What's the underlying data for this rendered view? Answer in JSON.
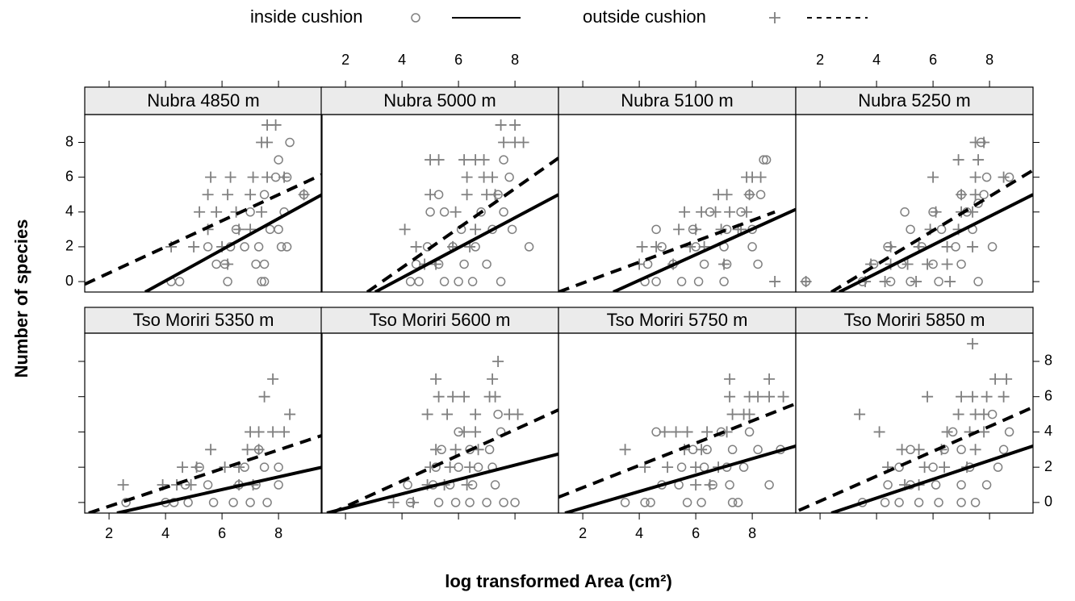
{
  "chart_data": {
    "type": "scatter",
    "xlabel": "log transformed Area (cm²)",
    "ylabel": "Number of species",
    "xlim": [
      1.14,
      9.54
    ],
    "ylim": [
      -0.6,
      9.6
    ],
    "xticks": [
      2,
      4,
      6,
      8
    ],
    "yticks": [
      0,
      2,
      4,
      6,
      8
    ],
    "point_color": "#808080",
    "line_color": "#000000",
    "series": [
      {
        "name": "inside cushion",
        "marker": "circle",
        "line": "solid"
      },
      {
        "name": "outside cushion",
        "marker": "plus",
        "line": "dashed"
      }
    ],
    "panels": [
      {
        "title": "Nubra 4850 m",
        "points": [
          {
            "x": [
              6.2,
              7.4,
              7.5,
              4.2,
              4.5,
              5.8,
              6.1,
              7.2,
              7.5,
              5.5,
              6.3,
              6.8,
              7.3,
              8.1,
              8.3,
              6.5,
              7.7,
              8.0,
              7.0,
              8.2,
              7.5,
              8.9,
              7.9,
              8.3,
              8.0,
              8.4
            ],
            "y": [
              0,
              0,
              0,
              0,
              0,
              1,
              1,
              1,
              1,
              2,
              2,
              2,
              2,
              2,
              2,
              3,
              3,
              3,
              4,
              4,
              5,
              5,
              6,
              6,
              7,
              8
            ]
          },
          {
            "x": [
              4.2,
              5.0,
              5.5,
              5.2,
              5.8,
              6.5,
              5.5,
              6.2,
              7.0,
              5.6,
              6.3,
              7.1,
              7.6,
              8.2,
              6.6,
              7.4,
              7.4,
              7.6,
              7.6,
              7.9,
              8.9,
              6.0,
              7.0,
              6.2
            ],
            "y": [
              2,
              2,
              3,
              4,
              4,
              4,
              5,
              5,
              5,
              6,
              6,
              6,
              6,
              6,
              3,
              4,
              8,
              8,
              9,
              9,
              5,
              2,
              3,
              1
            ]
          }
        ],
        "fits": [
          {
            "x": [
              3.28,
              9.54
            ],
            "y": [
              -0.6,
              5.0
            ]
          },
          {
            "x": [
              1.14,
              9.54
            ],
            "y": [
              -0.15,
              6.15
            ]
          }
        ]
      },
      {
        "title": "Nubra 5000 m",
        "points": [
          {
            "x": [
              4.3,
              4.6,
              5.5,
              6.0,
              6.5,
              7.5,
              4.5,
              5.3,
              6.2,
              7.0,
              4.9,
              5.8,
              6.6,
              8.5,
              6.1,
              7.2,
              7.9,
              5.0,
              6.8,
              7.6,
              5.3,
              7.4,
              7.8,
              7.6,
              5.5
            ],
            "y": [
              0,
              0,
              0,
              0,
              0,
              0,
              1,
              1,
              1,
              1,
              2,
              2,
              2,
              2,
              3,
              3,
              3,
              4,
              4,
              4,
              5,
              5,
              6,
              7,
              4
            ]
          },
          {
            "x": [
              4.1,
              4.5,
              4.8,
              5.2,
              5.8,
              6.4,
              6.6,
              5.0,
              5.9,
              6.3,
              7.0,
              7.3,
              5.0,
              5.3,
              6.2,
              6.6,
              6.9,
              6.3,
              6.9,
              7.2,
              7.6,
              8.0,
              8.3,
              7.5,
              8.0
            ],
            "y": [
              3,
              2,
              1,
              1,
              2,
              2,
              3,
              5,
              4,
              5,
              5,
              5,
              7,
              7,
              7,
              7,
              7,
              6,
              6,
              6,
              8,
              8,
              8,
              9,
              9
            ]
          }
        ],
        "fits": [
          {
            "x": [
              3.05,
              9.54
            ],
            "y": [
              -0.6,
              5.0
            ]
          },
          {
            "x": [
              2.77,
              9.54
            ],
            "y": [
              -0.6,
              7.1
            ]
          }
        ]
      },
      {
        "title": "Nubra 5100 m",
        "points": [
          {
            "x": [
              4.2,
              4.6,
              5.5,
              6.1,
              7.0,
              4.3,
              5.2,
              6.3,
              7.1,
              8.2,
              4.8,
              6.0,
              7.0,
              8.0,
              4.6,
              5.9,
              7.1,
              8.0,
              6.5,
              7.6,
              7.9,
              8.3,
              8.4,
              8.5
            ],
            "y": [
              0,
              0,
              0,
              0,
              0,
              1,
              1,
              1,
              1,
              1,
              2,
              2,
              2,
              2,
              3,
              3,
              3,
              3,
              4,
              4,
              5,
              5,
              7,
              7
            ]
          },
          {
            "x": [
              4.0,
              4.1,
              4.6,
              5.2,
              5.8,
              6.3,
              7.0,
              5.4,
              6.0,
              6.9,
              7.5,
              5.6,
              6.2,
              6.7,
              7.2,
              7.8,
              6.8,
              7.1,
              7.9,
              7.8,
              8.0,
              8.3,
              7.6,
              8.8
            ],
            "y": [
              1,
              2,
              2,
              1,
              2,
              2,
              1,
              3,
              3,
              3,
              3,
              4,
              4,
              4,
              4,
              4,
              5,
              5,
              5,
              6,
              6,
              6,
              3,
              0
            ]
          }
        ],
        "fits": [
          {
            "x": [
              3.08,
              9.54
            ],
            "y": [
              -0.6,
              4.15
            ]
          },
          {
            "x": [
              1.14,
              8.8
            ],
            "y": [
              -0.6,
              4.0
            ]
          }
        ]
      },
      {
        "title": "Nubra 5250 m",
        "points": [
          {
            "x": [
              1.5,
              3.5,
              4.5,
              5.2,
              6.2,
              7.6,
              3.9,
              4.9,
              6.0,
              7.0,
              4.4,
              5.6,
              6.8,
              8.1,
              5.2,
              6.3,
              7.4,
              5.0,
              6.0,
              7.2,
              7.6,
              7.0,
              7.8,
              7.9,
              8.7,
              7.7
            ],
            "y": [
              0,
              0,
              0,
              0,
              0,
              0,
              1,
              1,
              1,
              1,
              2,
              2,
              2,
              2,
              3,
              3,
              3,
              4,
              4,
              4,
              4.5,
              5,
              5,
              6,
              6,
              8
            ]
          },
          {
            "x": [
              1.5,
              3.6,
              4.3,
              5.4,
              6.6,
              3.8,
              4.5,
              5.1,
              5.8,
              6.5,
              4.5,
              5.5,
              6.5,
              7.4,
              5.9,
              6.9,
              6.1,
              7.0,
              7.4,
              7.0,
              7.5,
              6.0,
              7.5,
              6.9,
              7.6,
              7.5,
              7.8,
              8.5
            ],
            "y": [
              0,
              0,
              0,
              0,
              0,
              1,
              1,
              1,
              1,
              1,
              2,
              2,
              2,
              2,
              3,
              3,
              4,
              4,
              4,
              5,
              5,
              6,
              6,
              7,
              7,
              8,
              8,
              6
            ]
          }
        ],
        "fits": [
          {
            "x": [
              2.68,
              9.54
            ],
            "y": [
              -0.6,
              5.0
            ]
          },
          {
            "x": [
              2.4,
              9.54
            ],
            "y": [
              -0.6,
              6.4
            ]
          }
        ]
      },
      {
        "title": "Tso Moriri 5350 m",
        "points": [
          {
            "x": [
              2.6,
              4.0,
              4.8,
              5.7,
              6.4,
              7.0,
              7.6,
              4.7,
              5.5,
              6.6,
              7.2,
              8.0,
              5.2,
              6.8,
              7.5,
              8.0,
              7.3,
              4.3
            ],
            "y": [
              0,
              0,
              0,
              0,
              0,
              0,
              0,
              1,
              1,
              1,
              1,
              1,
              2,
              2,
              2,
              2,
              3,
              0
            ]
          },
          {
            "x": [
              2.5,
              3.9,
              4.4,
              4.9,
              4.6,
              5.1,
              5.6,
              6.1,
              6.6,
              6.9,
              7.3,
              7.0,
              7.3,
              7.8,
              7.5,
              7.8,
              8.2,
              8.4,
              6.6,
              7.1
            ],
            "y": [
              1,
              1,
              1,
              1,
              2,
              2,
              3,
              2,
              2,
              3,
              3,
              4,
              4,
              4,
              6,
              7,
              4,
              5,
              1,
              1
            ]
          }
        ],
        "fits": [
          {
            "x": [
              2.28,
              9.54
            ],
            "y": [
              -0.6,
              2.0
            ]
          },
          {
            "x": [
              1.28,
              9.54
            ],
            "y": [
              -0.6,
              3.8
            ]
          }
        ]
      },
      {
        "title": "Tso Moriri 5600 m",
        "points": [
          {
            "x": [
              4.3,
              5.3,
              5.9,
              6.4,
              7.0,
              7.6,
              8.0,
              4.2,
              5.1,
              5.7,
              6.5,
              7.3,
              5.2,
              6.0,
              6.7,
              7.2,
              5.4,
              6.4,
              7.1,
              6.0,
              7.4,
              7.5
            ],
            "y": [
              0,
              0,
              0,
              0,
              0,
              0,
              0,
              1,
              1,
              1,
              1,
              1,
              2,
              2,
              2,
              2,
              3,
              3,
              3,
              4,
              5,
              4
            ]
          },
          {
            "x": [
              3.7,
              4.4,
              4.9,
              5.5,
              6.3,
              5.0,
              5.7,
              6.4,
              5.2,
              5.9,
              6.7,
              6.2,
              6.6,
              4.9,
              5.6,
              6.6,
              7.8,
              8.1,
              5.3,
              5.8,
              6.2,
              7.1,
              7.3,
              5.2,
              7.2,
              7.4
            ],
            "y": [
              0,
              0,
              1,
              1,
              1,
              2,
              2,
              2,
              3,
              3,
              3,
              4,
              4,
              5,
              5,
              5,
              5,
              5,
              6,
              6,
              6,
              6,
              6,
              7,
              7,
              8
            ]
          }
        ],
        "fits": [
          {
            "x": [
              1.34,
              9.54
            ],
            "y": [
              -0.6,
              2.75
            ]
          },
          {
            "x": [
              1.5,
              9.54
            ],
            "y": [
              -0.6,
              5.25
            ]
          }
        ]
      },
      {
        "title": "Tso Moriri 5750 m",
        "points": [
          {
            "x": [
              3.5,
              4.2,
              4.4,
              5.7,
              6.2,
              7.3,
              7.5,
              4.8,
              5.4,
              6.6,
              7.2,
              8.6,
              5.5,
              6.3,
              7.1,
              7.7,
              6.4,
              7.3,
              8.2,
              9.0,
              4.6,
              6.9,
              7.9,
              5.9
            ],
            "y": [
              0,
              0,
              0,
              0,
              0,
              0,
              0,
              1,
              1,
              1,
              1,
              1,
              2,
              2,
              2,
              2,
              3,
              3,
              3,
              3,
              4,
              4,
              4,
              3
            ]
          },
          {
            "x": [
              3.5,
              4.2,
              4.9,
              5.3,
              5.0,
              5.6,
              6.0,
              6.2,
              6.8,
              5.7,
              6.4,
              7.1,
              7.3,
              7.7,
              7.9,
              7.2,
              7.9,
              8.2,
              8.6,
              9.1,
              7.2,
              8.6,
              6.0,
              6.5
            ],
            "y": [
              3,
              2,
              4,
              4,
              2,
              3,
              2,
              3,
              2,
              4,
              4,
              4,
              5,
              5,
              5,
              6,
              6,
              6,
              6,
              6,
              7,
              7,
              1,
              1
            ]
          }
        ],
        "fits": [
          {
            "x": [
              1.37,
              9.54
            ],
            "y": [
              -0.6,
              3.2
            ]
          },
          {
            "x": [
              1.14,
              9.54
            ],
            "y": [
              0.3,
              5.6
            ]
          }
        ]
      },
      {
        "title": "Tso Moriri 5850 m",
        "points": [
          {
            "x": [
              3.5,
              4.3,
              4.8,
              5.5,
              6.2,
              7.0,
              7.5,
              4.4,
              5.2,
              6.1,
              7.0,
              7.9,
              4.8,
              6.0,
              7.3,
              8.3,
              5.2,
              6.4,
              7.0,
              8.5,
              6.7,
              8.7,
              8.1
            ],
            "y": [
              0,
              0,
              0,
              0,
              0,
              0,
              0,
              1,
              1,
              1,
              1,
              1,
              2,
              2,
              2,
              2,
              3,
              3,
              3,
              3,
              4,
              4,
              5
            ]
          },
          {
            "x": [
              3.4,
              4.1,
              4.4,
              5.0,
              5.5,
              4.9,
              5.7,
              6.4,
              7.2,
              5.5,
              6.3,
              7.5,
              5.8,
              6.5,
              7.3,
              7.8,
              6.9,
              7.5,
              7.8,
              7.0,
              7.4,
              7.9,
              8.5,
              8.2,
              8.6,
              7.4
            ],
            "y": [
              5,
              4,
              2,
              1,
              1,
              3,
              2,
              2,
              2,
              3,
              3,
              3,
              6,
              4,
              4,
              4,
              5,
              5,
              5,
              6,
              6,
              6,
              6,
              7,
              7,
              9
            ]
          }
        ],
        "fits": [
          {
            "x": [
              2.4,
              9.54
            ],
            "y": [
              -0.6,
              3.2
            ]
          },
          {
            "x": [
              1.25,
              9.54
            ],
            "y": [
              -0.45,
              5.4
            ]
          }
        ]
      }
    ]
  }
}
